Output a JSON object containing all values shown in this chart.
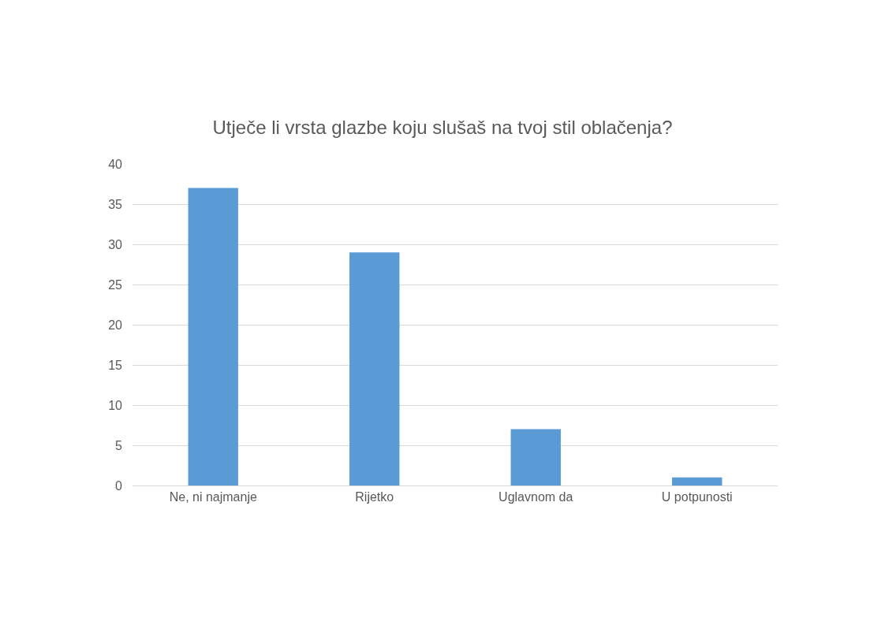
{
  "chart_data": {
    "type": "bar",
    "title": "Utječe li vrsta glazbe koju slušaš na tvoj stil oblačenja?",
    "categories": [
      "Ne, ni najmanje",
      "Rijetko",
      "Uglavnom da",
      "U potpunosti"
    ],
    "values": [
      37,
      29,
      7,
      1
    ],
    "color": "#5b9bd5",
    "ylim": [
      0,
      40
    ],
    "yticks": [
      0,
      5,
      10,
      15,
      20,
      25,
      30,
      35,
      40
    ],
    "grid": "y",
    "legend": false
  }
}
